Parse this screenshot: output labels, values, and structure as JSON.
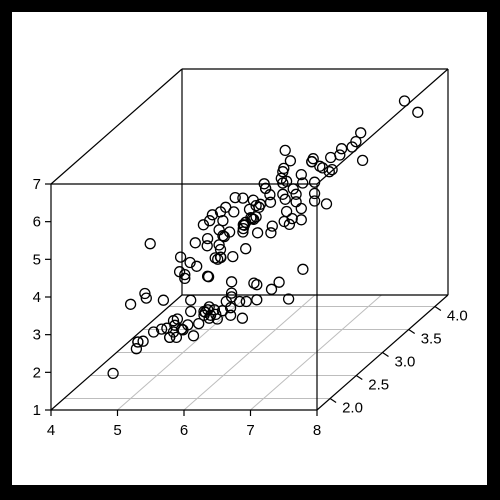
{
  "chart_data": {
    "type": "scatter",
    "projection": "3d",
    "grid": true,
    "title": "",
    "xlabel": "",
    "ylabel": "",
    "zlabel": "",
    "xlim": [
      4,
      8
    ],
    "ylim": [
      1.75,
      4.25
    ],
    "zlim": [
      1,
      7
    ],
    "x_ticks": [
      "4",
      "5",
      "6",
      "7",
      "8"
    ],
    "y_ticks": [
      "2.0",
      "2.5",
      "3.0",
      "3.5",
      "4.0"
    ],
    "z_ticks": [
      "1",
      "2",
      "3",
      "4",
      "5",
      "6",
      "7"
    ],
    "points": [
      [
        4.4,
        2.9,
        1.4
      ],
      [
        4.9,
        3.0,
        1.4
      ],
      [
        4.7,
        3.2,
        1.3
      ],
      [
        4.6,
        3.1,
        1.5
      ],
      [
        5.0,
        3.6,
        1.4
      ],
      [
        5.4,
        3.9,
        1.7
      ],
      [
        4.6,
        3.4,
        1.4
      ],
      [
        5.0,
        3.4,
        1.5
      ],
      [
        4.4,
        2.9,
        1.4
      ],
      [
        4.9,
        3.1,
        1.5
      ],
      [
        5.4,
        3.7,
        1.5
      ],
      [
        4.8,
        3.4,
        1.6
      ],
      [
        4.8,
        3.0,
        1.4
      ],
      [
        4.3,
        3.0,
        1.1
      ],
      [
        5.8,
        4.0,
        1.2
      ],
      [
        5.7,
        4.4,
        1.5
      ],
      [
        5.4,
        3.9,
        1.3
      ],
      [
        5.1,
        3.5,
        1.4
      ],
      [
        5.7,
        3.8,
        1.7
      ],
      [
        5.1,
        3.8,
        1.5
      ],
      [
        5.4,
        3.4,
        1.7
      ],
      [
        5.1,
        3.7,
        1.5
      ],
      [
        4.6,
        3.6,
        1.0
      ],
      [
        5.1,
        3.3,
        1.7
      ],
      [
        4.8,
        3.4,
        1.9
      ],
      [
        5.0,
        3.0,
        1.6
      ],
      [
        5.0,
        3.4,
        1.6
      ],
      [
        5.2,
        3.5,
        1.5
      ],
      [
        5.2,
        3.4,
        1.4
      ],
      [
        4.7,
        3.2,
        1.6
      ],
      [
        4.8,
        3.1,
        1.6
      ],
      [
        5.4,
        3.4,
        1.5
      ],
      [
        5.2,
        4.1,
        1.5
      ],
      [
        5.5,
        4.2,
        1.4
      ],
      [
        4.9,
        3.1,
        1.5
      ],
      [
        5.0,
        3.2,
        1.2
      ],
      [
        5.5,
        3.5,
        1.3
      ],
      [
        4.9,
        3.6,
        1.4
      ],
      [
        4.4,
        3.0,
        1.3
      ],
      [
        5.1,
        3.4,
        1.5
      ],
      [
        5.0,
        3.5,
        1.3
      ],
      [
        4.5,
        2.3,
        1.3
      ],
      [
        4.4,
        3.2,
        1.3
      ],
      [
        5.0,
        3.5,
        1.6
      ],
      [
        5.1,
        3.8,
        1.9
      ],
      [
        4.8,
        3.0,
        1.4
      ],
      [
        5.1,
        3.8,
        1.6
      ],
      [
        4.6,
        3.2,
        1.4
      ],
      [
        5.3,
        3.7,
        1.5
      ],
      [
        5.0,
        3.3,
        1.4
      ],
      [
        7.0,
        3.2,
        4.7
      ],
      [
        6.4,
        3.2,
        4.5
      ],
      [
        6.9,
        3.1,
        4.9
      ],
      [
        5.5,
        2.3,
        4.0
      ],
      [
        6.5,
        2.8,
        4.6
      ],
      [
        5.7,
        2.8,
        4.5
      ],
      [
        6.3,
        3.3,
        4.7
      ],
      [
        4.9,
        2.4,
        3.3
      ],
      [
        6.6,
        2.9,
        4.6
      ],
      [
        5.2,
        2.7,
        3.9
      ],
      [
        5.0,
        2.0,
        3.5
      ],
      [
        5.9,
        3.0,
        4.2
      ],
      [
        6.0,
        2.2,
        4.0
      ],
      [
        6.1,
        2.9,
        4.7
      ],
      [
        5.6,
        2.9,
        3.6
      ],
      [
        6.7,
        3.1,
        4.4
      ],
      [
        5.6,
        3.0,
        4.5
      ],
      [
        5.8,
        2.7,
        4.1
      ],
      [
        6.2,
        2.2,
        4.5
      ],
      [
        5.6,
        2.5,
        3.9
      ],
      [
        5.9,
        3.2,
        4.8
      ],
      [
        6.1,
        2.8,
        4.0
      ],
      [
        6.3,
        2.5,
        4.9
      ],
      [
        6.1,
        2.8,
        4.7
      ],
      [
        6.4,
        2.9,
        4.3
      ],
      [
        6.6,
        3.0,
        4.4
      ],
      [
        6.8,
        2.8,
        4.8
      ],
      [
        6.7,
        3.0,
        5.0
      ],
      [
        6.0,
        2.9,
        4.5
      ],
      [
        5.7,
        2.6,
        3.5
      ],
      [
        5.5,
        2.4,
        3.8
      ],
      [
        5.5,
        2.4,
        3.7
      ],
      [
        5.8,
        2.7,
        3.9
      ],
      [
        6.0,
        2.7,
        5.1
      ],
      [
        5.4,
        3.0,
        4.5
      ],
      [
        6.0,
        3.4,
        4.5
      ],
      [
        6.7,
        3.1,
        4.7
      ],
      [
        6.3,
        2.3,
        4.4
      ],
      [
        5.6,
        3.0,
        4.1
      ],
      [
        5.5,
        2.5,
        4.0
      ],
      [
        5.5,
        2.6,
        4.4
      ],
      [
        6.1,
        3.0,
        4.6
      ],
      [
        5.8,
        2.6,
        4.0
      ],
      [
        5.0,
        2.3,
        3.3
      ],
      [
        5.6,
        2.7,
        4.2
      ],
      [
        5.7,
        3.0,
        4.2
      ],
      [
        5.7,
        2.9,
        4.2
      ],
      [
        6.2,
        2.9,
        4.3
      ],
      [
        5.1,
        2.5,
        3.0
      ],
      [
        5.7,
        2.8,
        4.1
      ],
      [
        6.3,
        3.3,
        6.0
      ],
      [
        5.8,
        2.7,
        5.1
      ],
      [
        7.1,
        3.0,
        5.9
      ],
      [
        6.3,
        2.9,
        5.6
      ],
      [
        6.5,
        3.0,
        5.8
      ],
      [
        7.6,
        3.0,
        6.6
      ],
      [
        4.9,
        2.5,
        4.5
      ],
      [
        7.3,
        2.9,
        6.3
      ],
      [
        6.7,
        2.5,
        5.8
      ],
      [
        7.2,
        3.6,
        6.1
      ],
      [
        6.5,
        3.2,
        5.1
      ],
      [
        6.4,
        2.7,
        5.3
      ],
      [
        6.8,
        3.0,
        5.5
      ],
      [
        5.7,
        2.5,
        5.0
      ],
      [
        5.8,
        2.8,
        5.1
      ],
      [
        6.4,
        3.2,
        5.3
      ],
      [
        6.5,
        3.0,
        5.5
      ],
      [
        7.7,
        3.8,
        6.7
      ],
      [
        7.7,
        2.6,
        6.9
      ],
      [
        6.0,
        2.2,
        5.0
      ],
      [
        6.9,
        3.2,
        5.7
      ],
      [
        5.6,
        2.8,
        4.9
      ],
      [
        7.7,
        2.8,
        6.7
      ],
      [
        6.3,
        2.7,
        4.9
      ],
      [
        6.7,
        3.3,
        5.7
      ],
      [
        7.2,
        3.2,
        6.0
      ],
      [
        6.2,
        2.8,
        4.8
      ],
      [
        6.1,
        3.0,
        4.9
      ],
      [
        6.4,
        2.8,
        5.6
      ],
      [
        7.2,
        3.0,
        5.8
      ],
      [
        7.4,
        2.8,
        6.1
      ],
      [
        7.9,
        3.8,
        6.4
      ],
      [
        6.4,
        2.8,
        5.6
      ],
      [
        6.3,
        2.8,
        5.1
      ],
      [
        6.1,
        2.6,
        5.6
      ],
      [
        7.7,
        3.0,
        6.1
      ],
      [
        6.3,
        3.4,
        5.6
      ],
      [
        6.4,
        3.1,
        5.5
      ],
      [
        6.0,
        3.0,
        4.8
      ],
      [
        6.9,
        3.1,
        5.4
      ],
      [
        6.7,
        3.1,
        5.6
      ],
      [
        6.9,
        3.1,
        5.1
      ],
      [
        6.8,
        3.2,
        5.9
      ],
      [
        6.7,
        3.3,
        5.7
      ],
      [
        6.7,
        3.0,
        5.2
      ],
      [
        6.3,
        2.5,
        5.0
      ],
      [
        6.5,
        3.0,
        5.2
      ],
      [
        6.2,
        3.4,
        5.4
      ],
      [
        5.9,
        3.0,
        5.1
      ]
    ]
  }
}
